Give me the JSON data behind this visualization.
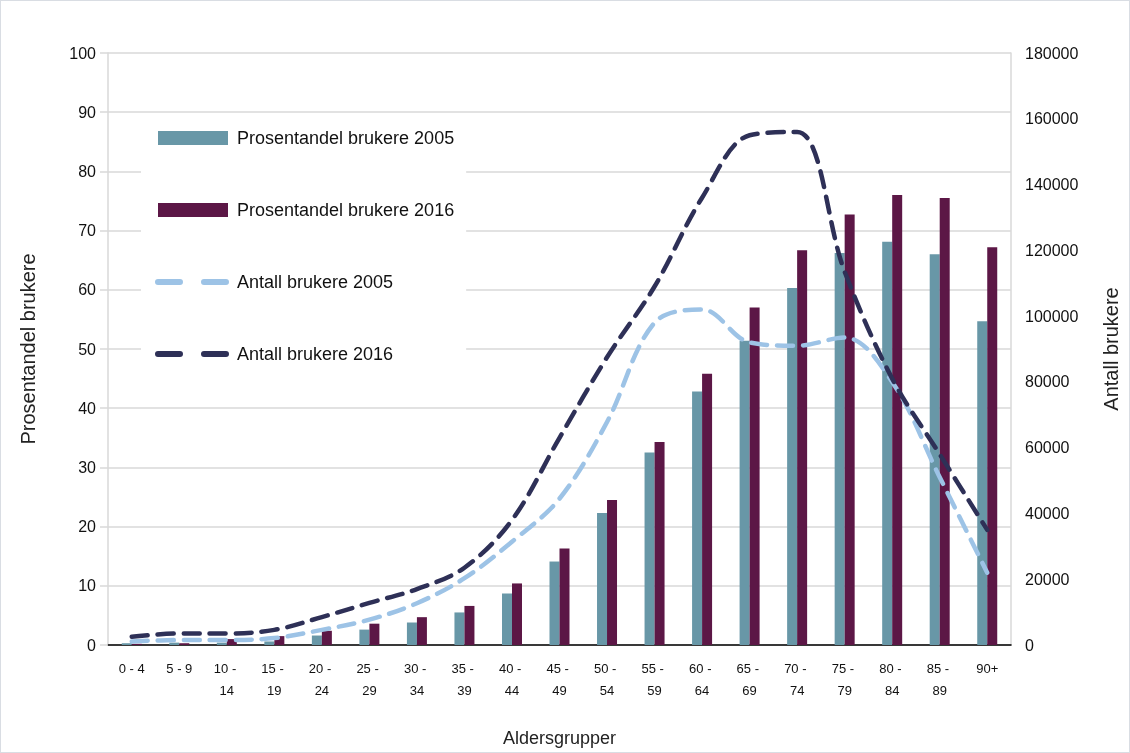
{
  "chart_data": {
    "type": "bar",
    "xlabel": "Aldersgrupper",
    "ylabel": "Prosentandel brukere",
    "y2label": "Antall brukere",
    "categories": [
      "0 - 4",
      "5 - 9",
      "10 - 14",
      "15 - 19",
      "20 - 24",
      "25 - 29",
      "30 - 34",
      "35 - 39",
      "40 - 44",
      "45 - 49",
      "50 - 54",
      "55 - 59",
      "60 - 64",
      "65 - 69",
      "70 - 74",
      "75 - 79",
      "80 - 84",
      "85 - 89",
      "90+"
    ],
    "series": [
      {
        "name": "Prosentandel brukere 2005",
        "color": "#6897a7",
        "values": [
          0.3,
          0.4,
          0.4,
          0.6,
          1.6,
          2.6,
          3.8,
          5.5,
          8.7,
          14.1,
          22.3,
          32.5,
          42.8,
          51.4,
          60.3,
          66.2,
          68.1,
          66.0,
          54.7
        ]
      },
      {
        "name": "Prosentandel brukere 2016",
        "color": "#5c1746",
        "values": [
          0.2,
          0.3,
          1.0,
          1.5,
          2.4,
          3.6,
          4.7,
          6.6,
          10.4,
          16.3,
          24.5,
          34.3,
          45.8,
          57.0,
          66.7,
          72.7,
          76.0,
          75.5,
          67.2
        ]
      },
      {
        "name": "Antall brukere 2005",
        "type": "line",
        "axis": "y2",
        "color": "#9dc3e6",
        "line_style": "dashed",
        "values": [
          1100,
          1500,
          1500,
          2100,
          4600,
          7700,
          12700,
          20300,
          31400,
          44500,
          67800,
          98000,
          102000,
          92000,
          91000,
          93500,
          80000,
          51000,
          22000
        ]
      },
      {
        "name": "Antall brukere 2016",
        "type": "line",
        "axis": "y2",
        "color": "#2e3057",
        "line_style": "dashed",
        "values": [
          2500,
          3500,
          3500,
          4600,
          8500,
          12800,
          17000,
          23500,
          38000,
          63000,
          87500,
          109000,
          136000,
          155000,
          156000,
          113500,
          81000,
          58000,
          35000
        ]
      }
    ],
    "ylim": [
      0,
      100
    ],
    "yticks": [
      0,
      10,
      20,
      30,
      40,
      50,
      60,
      70,
      80,
      90,
      100
    ],
    "y2lim": [
      0,
      180000
    ],
    "y2ticks": [
      0,
      20000,
      40000,
      60000,
      80000,
      100000,
      120000,
      140000,
      160000,
      180000
    ],
    "grid": "y",
    "legend": "top left",
    "marker": "none"
  }
}
